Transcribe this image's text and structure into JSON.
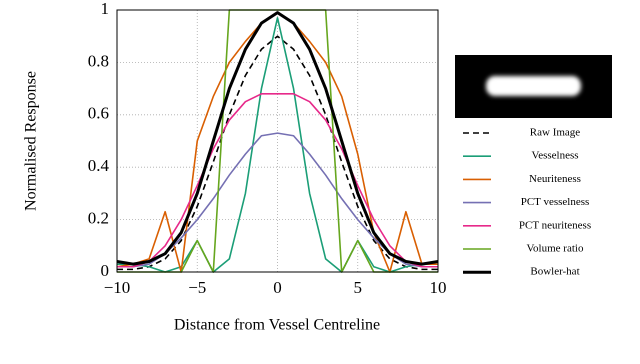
{
  "chart_data": {
    "type": "line",
    "x_label": "Distance from Vessel Centreline",
    "y_label": "Normalised Response",
    "x": [
      -10,
      -9,
      -8,
      -7,
      -6,
      -5,
      -4,
      -3,
      -2,
      -1,
      0,
      1,
      2,
      3,
      4,
      5,
      6,
      7,
      8,
      9,
      10
    ],
    "xlim": [
      -10,
      10
    ],
    "ylim": [
      0,
      1
    ],
    "xticks": [
      {
        "value": -10,
        "label": "−10"
      },
      {
        "value": -5,
        "label": "−5"
      },
      0,
      5,
      10
    ],
    "yticks": [
      0,
      0.2,
      0.4,
      0.6,
      0.8,
      1
    ],
    "grid": true,
    "legend": "right",
    "series": [
      {
        "name": "Raw Image",
        "color": "#000000",
        "style": "dashed",
        "values": [
          0.01,
          0.01,
          0.02,
          0.05,
          0.12,
          0.25,
          0.42,
          0.6,
          0.75,
          0.85,
          0.9,
          0.85,
          0.75,
          0.6,
          0.42,
          0.25,
          0.12,
          0.05,
          0.02,
          0.01,
          0.01
        ]
      },
      {
        "name": "Vesselness",
        "color": "#1b9e77",
        "values": [
          0.03,
          0.03,
          0.02,
          0.0,
          0.02,
          0.12,
          0.0,
          0.05,
          0.3,
          0.7,
          0.97,
          0.7,
          0.3,
          0.05,
          0.0,
          0.12,
          0.02,
          0.0,
          0.02,
          0.03,
          0.03
        ]
      },
      {
        "name": "Neuriteness",
        "color": "#d95f02",
        "values": [
          0.02,
          0.03,
          0.05,
          0.23,
          0.0,
          0.5,
          0.67,
          0.8,
          0.88,
          0.95,
          0.99,
          0.95,
          0.88,
          0.8,
          0.67,
          0.45,
          0.15,
          0.0,
          0.23,
          0.03,
          0.03
        ]
      },
      {
        "name": "PCT vesselness",
        "color": "#7570b3",
        "values": [
          0.02,
          0.02,
          0.03,
          0.07,
          0.13,
          0.2,
          0.28,
          0.37,
          0.45,
          0.52,
          0.53,
          0.52,
          0.45,
          0.37,
          0.28,
          0.2,
          0.13,
          0.07,
          0.03,
          0.02,
          0.02
        ]
      },
      {
        "name": "PCT neuriteness",
        "color": "#e7298a",
        "values": [
          0.02,
          0.02,
          0.04,
          0.1,
          0.2,
          0.33,
          0.47,
          0.58,
          0.65,
          0.68,
          0.68,
          0.68,
          0.65,
          0.58,
          0.47,
          0.33,
          0.2,
          0.1,
          0.04,
          0.02,
          0.02
        ]
      },
      {
        "name": "Volume ratio",
        "color": "#66a61e",
        "values": [
          0,
          0,
          0,
          0,
          0,
          0.12,
          0,
          1,
          1,
          1,
          1,
          1,
          1,
          1,
          0,
          0.12,
          0,
          0,
          0,
          0,
          0
        ]
      },
      {
        "name": "Bowler-hat",
        "color": "#000000",
        "style": "thick",
        "values": [
          0.04,
          0.03,
          0.04,
          0.07,
          0.15,
          0.3,
          0.5,
          0.7,
          0.85,
          0.95,
          0.99,
          0.95,
          0.85,
          0.7,
          0.5,
          0.3,
          0.15,
          0.07,
          0.04,
          0.03,
          0.04
        ]
      }
    ]
  }
}
